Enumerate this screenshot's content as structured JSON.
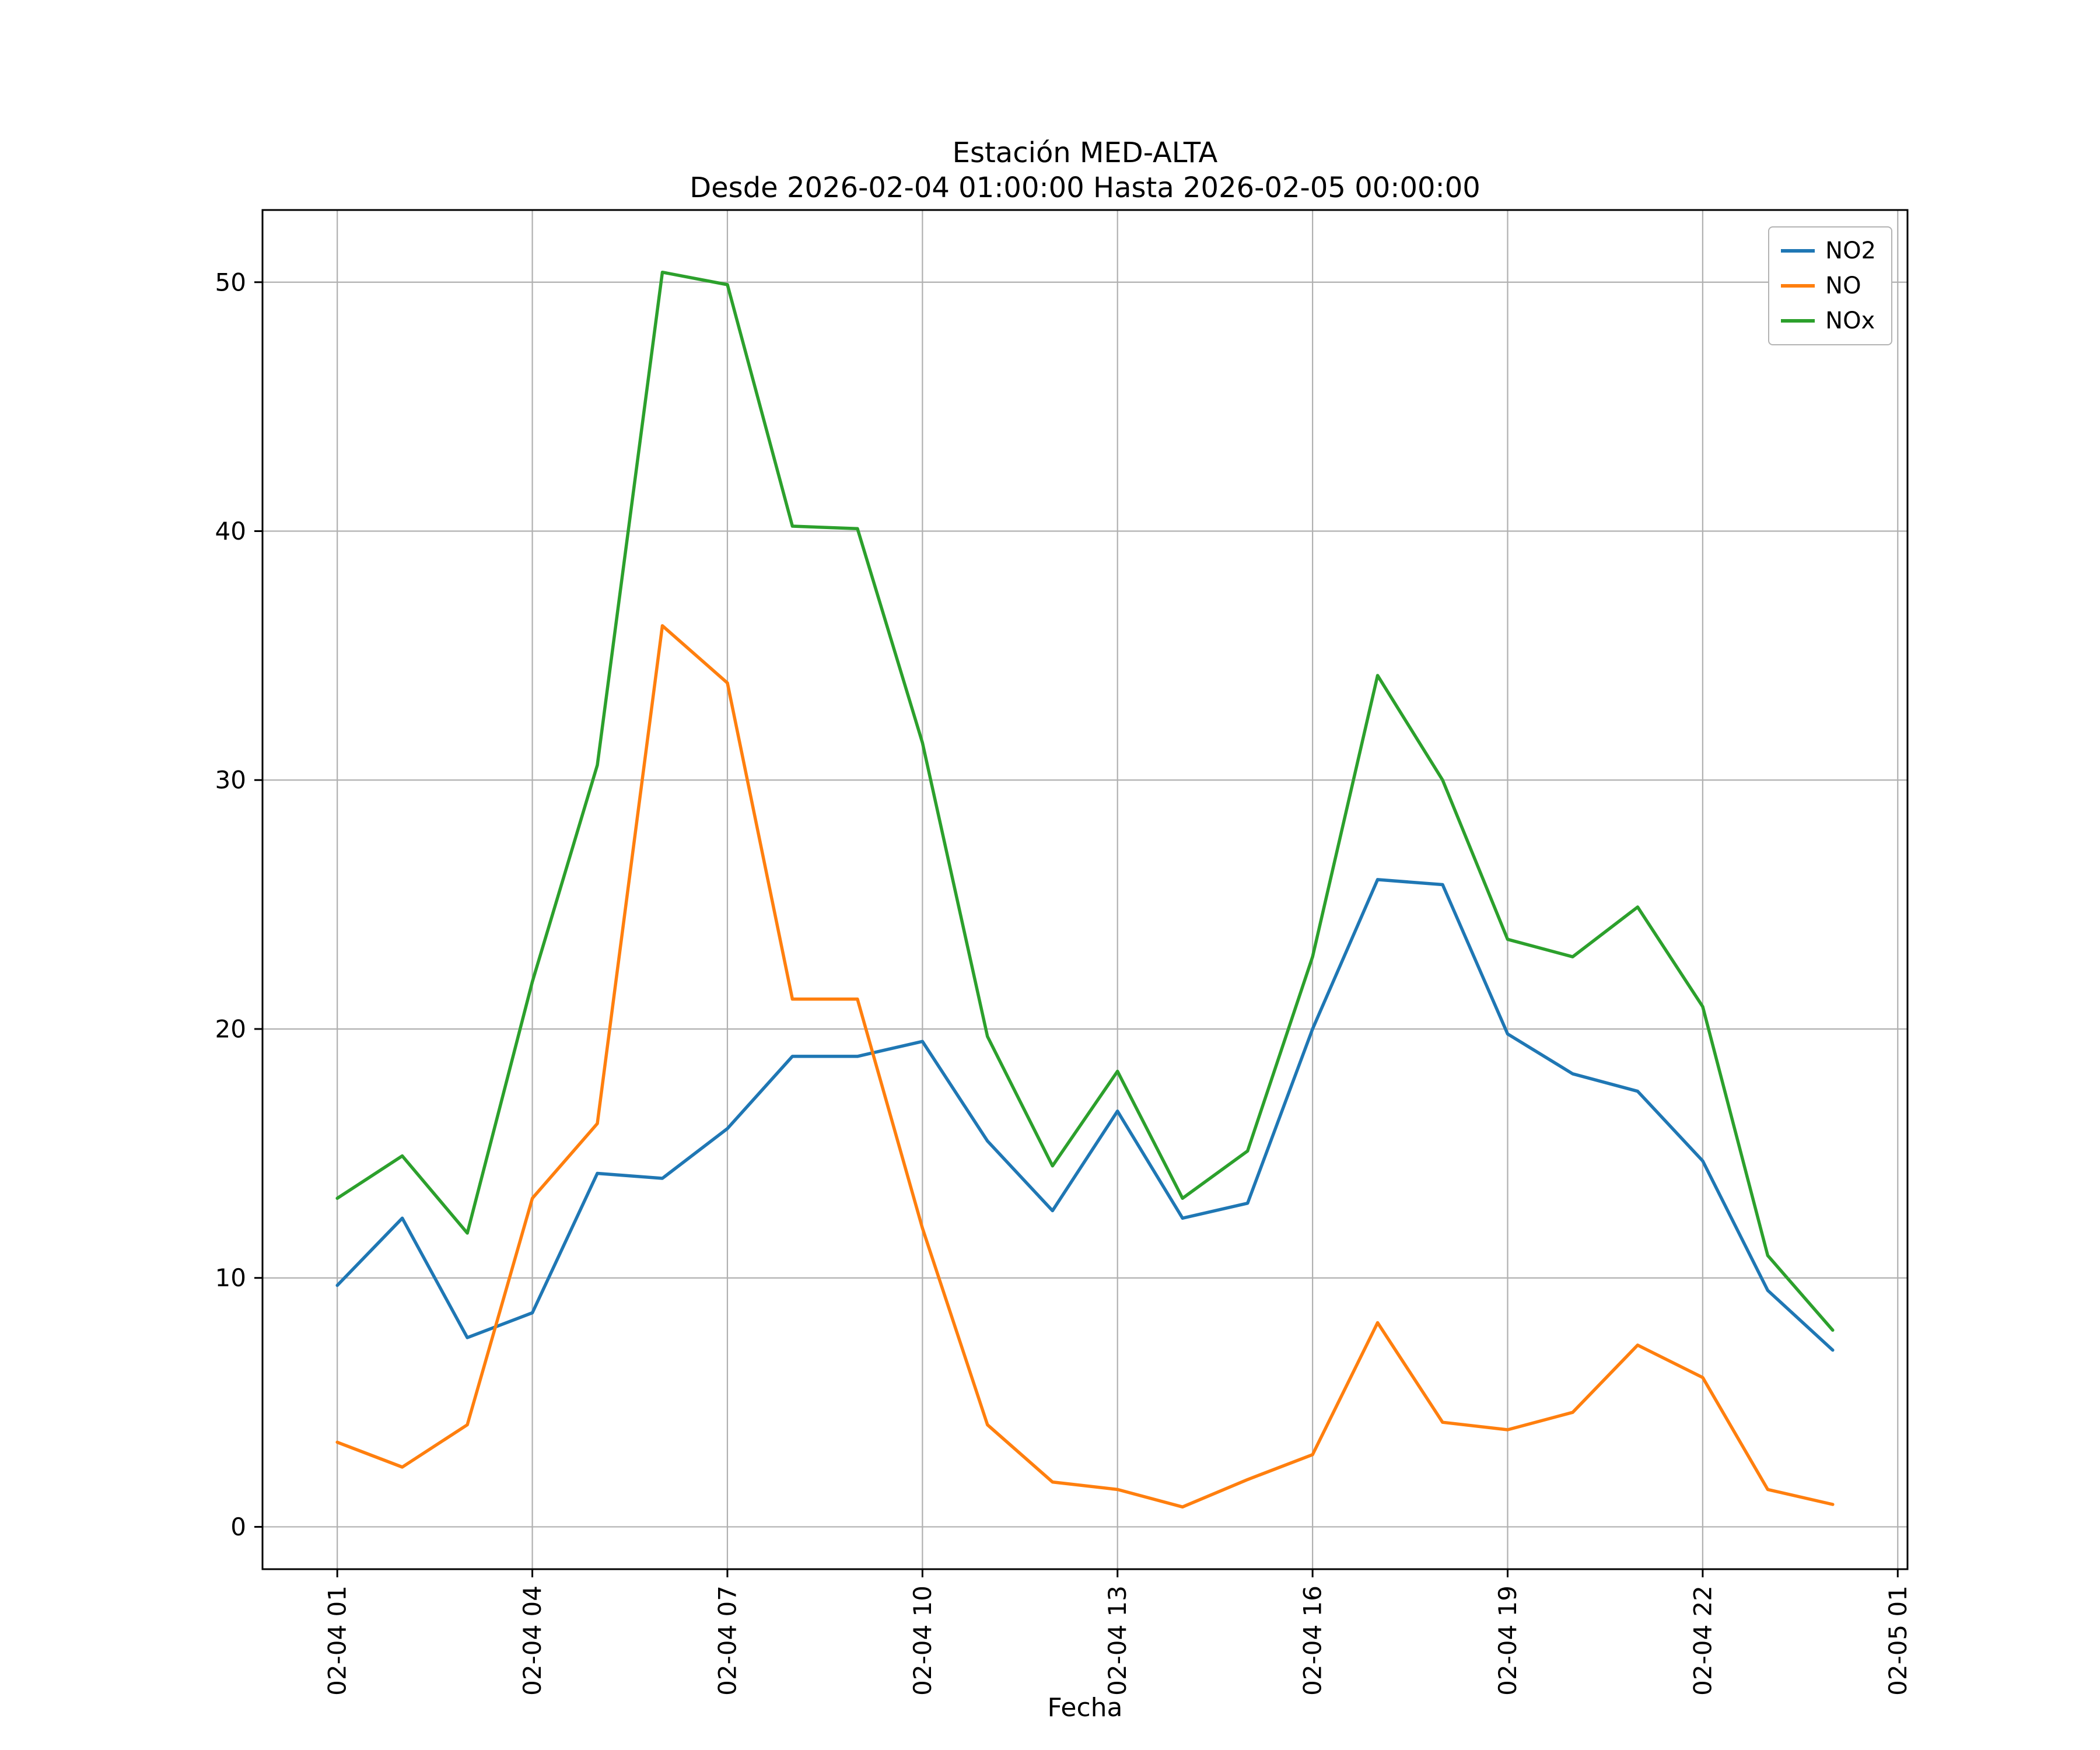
{
  "figure": {
    "background": "#ffffff",
    "axes_edge_color": "#000000",
    "grid_color": "#b0b0b0"
  },
  "chart_data": {
    "type": "line",
    "title": "Estación MED-ALTA",
    "subtitle": "Desde 2026-02-04 01:00:00 Hasta 2026-02-05 00:00:00",
    "xlabel": "Fecha",
    "ylabel": "",
    "grid": true,
    "legend_position": "upper right",
    "x_hours": [
      1,
      2,
      3,
      4,
      5,
      6,
      7,
      8,
      9,
      10,
      11,
      12,
      13,
      14,
      15,
      16,
      17,
      18,
      19,
      20,
      21,
      22,
      23,
      24
    ],
    "xtick_positions": [
      1,
      4,
      7,
      10,
      13,
      16,
      19,
      22,
      25
    ],
    "xtick_labels": [
      "02-04 01",
      "02-04 04",
      "02-04 07",
      "02-04 10",
      "02-04 13",
      "02-04 16",
      "02-04 19",
      "02-04 22",
      "02-05 01"
    ],
    "yticks": [
      0,
      10,
      20,
      30,
      40,
      50
    ],
    "xlim": [
      -0.15,
      25.15
    ],
    "ylim": [
      -1.7,
      52.9
    ],
    "series": [
      {
        "name": "NO2",
        "color": "#1f77b4",
        "values": [
          9.7,
          12.4,
          7.6,
          8.6,
          14.2,
          14.0,
          16.0,
          18.9,
          18.9,
          19.5,
          15.5,
          12.7,
          16.7,
          12.4,
          13.0,
          20.0,
          26.0,
          25.8,
          19.8,
          18.2,
          17.5,
          14.7,
          9.5,
          7.1
        ]
      },
      {
        "name": "NO",
        "color": "#ff7f0e",
        "values": [
          3.4,
          2.4,
          4.1,
          13.2,
          16.2,
          36.2,
          33.9,
          21.2,
          21.2,
          12.0,
          4.1,
          1.8,
          1.5,
          0.8,
          1.9,
          2.9,
          8.2,
          4.2,
          3.9,
          4.6,
          7.3,
          6.0,
          1.5,
          0.9
        ]
      },
      {
        "name": "NOx",
        "color": "#2ca02c",
        "values": [
          13.2,
          14.9,
          11.8,
          21.9,
          30.6,
          50.4,
          49.9,
          40.2,
          40.1,
          31.5,
          19.7,
          14.5,
          18.3,
          13.2,
          15.1,
          22.9,
          34.2,
          30.0,
          23.6,
          22.9,
          24.9,
          20.9,
          10.9,
          7.9
        ]
      }
    ]
  }
}
